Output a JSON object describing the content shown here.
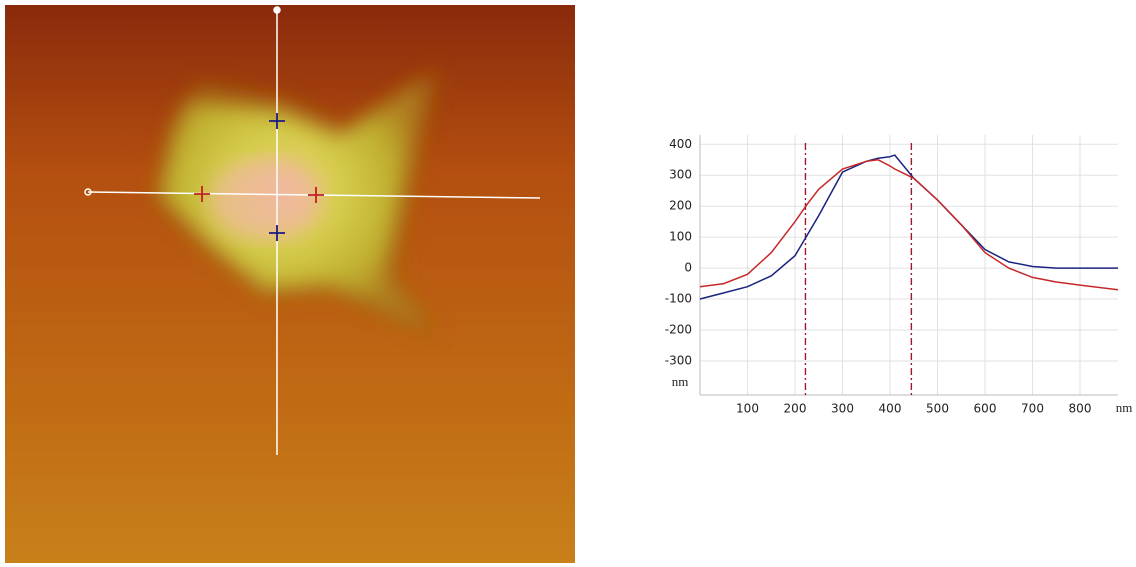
{
  "chart_data": {
    "type": "line",
    "x_label": "nm",
    "y_label": "nm",
    "x": [
      0,
      50,
      100,
      150,
      200,
      225,
      250,
      300,
      350,
      375,
      400,
      410,
      450,
      500,
      550,
      600,
      650,
      700,
      750,
      800,
      880
    ],
    "series": [
      {
        "color": "#1a237e",
        "values": [
          -100,
          -80,
          -60,
          -25,
          40,
          105,
          170,
          310,
          345,
          355,
          360,
          365,
          290,
          220,
          140,
          60,
          20,
          5,
          0,
          0,
          0
        ]
      },
      {
        "color": "#c62828",
        "values": [
          -60,
          -50,
          -20,
          50,
          150,
          205,
          255,
          320,
          345,
          350,
          330,
          320,
          290,
          220,
          140,
          50,
          0,
          -30,
          -45,
          -55,
          -70
        ]
      }
    ],
    "cursors": [
      222,
      445
    ],
    "cursor_color": "#a01830",
    "xlim": [
      0,
      880
    ],
    "xticks": [
      100,
      200,
      300,
      400,
      500,
      600,
      700,
      800
    ],
    "ylim": [
      -410,
      430
    ],
    "yticks": [
      -300,
      -200,
      -100,
      0,
      100,
      200,
      300,
      400
    ],
    "grid": true
  }
}
